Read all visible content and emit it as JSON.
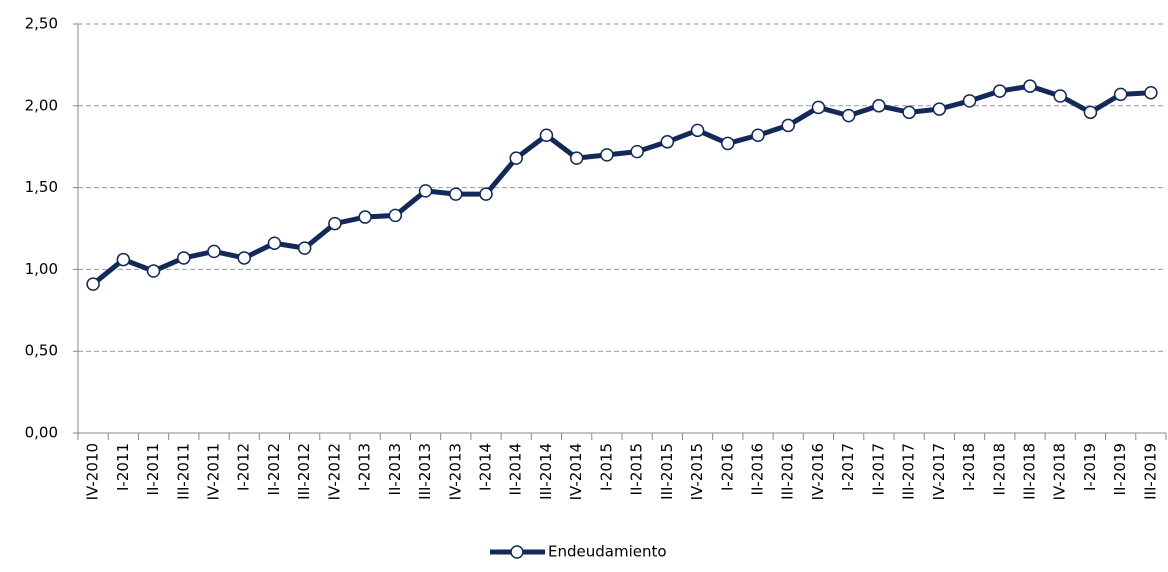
{
  "chart_data": {
    "type": "line",
    "categories": [
      "IV-2010",
      "I-2011",
      "II-2011",
      "III-2011",
      "IV-2011",
      "I-2012",
      "II-2012",
      "III-2012",
      "IV-2012",
      "I-2013",
      "II-2013",
      "III-2013",
      "IV-2013",
      "I-2014",
      "II-2014",
      "III-2014",
      "IV-2014",
      "I-2015",
      "II-2015",
      "III-2015",
      "IV-2015",
      "I-2016",
      "II-2016",
      "III-2016",
      "IV-2016",
      "I-2017",
      "II-2017",
      "III-2017",
      "IV-2017",
      "I-2018",
      "II-2018",
      "III-2018",
      "IV-2018",
      "I-2019",
      "II-2019",
      "III-2019"
    ],
    "series": [
      {
        "name": "Endeudamiento",
        "color": "#12295a",
        "values": [
          0.91,
          1.06,
          0.99,
          1.07,
          1.11,
          1.07,
          1.16,
          1.13,
          1.28,
          1.32,
          1.33,
          1.48,
          1.46,
          1.46,
          1.68,
          1.82,
          1.68,
          1.7,
          1.72,
          1.78,
          1.85,
          1.77,
          1.82,
          1.88,
          1.99,
          1.94,
          2.0,
          1.96,
          1.98,
          2.03,
          2.09,
          2.12,
          2.06,
          1.96,
          2.07,
          2.08
        ]
      }
    ],
    "ylim": [
      0,
      2.5
    ],
    "yticks": [
      {
        "value": 0,
        "label": "0,00"
      },
      {
        "value": 0.5,
        "label": "0,50"
      },
      {
        "value": 1,
        "label": "1,00"
      },
      {
        "value": 1.5,
        "label": "1,50"
      },
      {
        "value": 2,
        "label": "2,00"
      },
      {
        "value": 2.5,
        "label": "2,50"
      }
    ],
    "grid": true,
    "legend": "bottom"
  }
}
